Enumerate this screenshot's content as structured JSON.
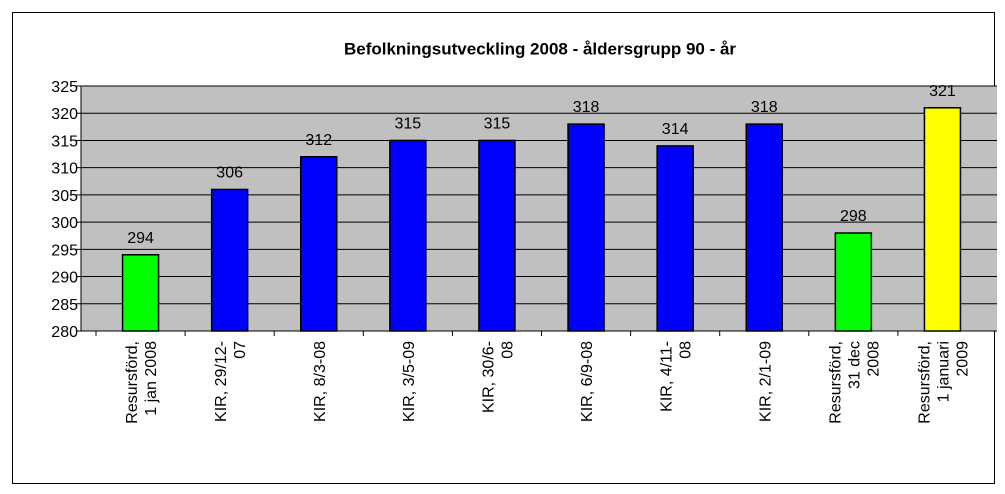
{
  "chart_data": {
    "type": "bar",
    "title": "Befolkningsutveckling 2008 - åldersgrupp 90 - år",
    "categories": [
      "Resursförd,\n1 jan 2008",
      "KIR, 29/12-\n07",
      "KIR, 8/3-08",
      "KIR, 3/5-09",
      "KIR, 30/6-\n08",
      "KIR, 6/9-08",
      "KIR, 4/11-\n08",
      "KIR, 2/1-09",
      "Resursförd,\n31 dec\n2008",
      "Resursförd,\n1 januari\n2009"
    ],
    "values": [
      294,
      306,
      312,
      315,
      315,
      318,
      314,
      318,
      298,
      321
    ],
    "colors": [
      "#00ff00",
      "#0000ff",
      "#0000ff",
      "#0000ff",
      "#0000ff",
      "#0000ff",
      "#0000ff",
      "#0000ff",
      "#00ff00",
      "#ffff00"
    ],
    "ylim": [
      280,
      325
    ],
    "yticks": [
      280,
      285,
      290,
      295,
      300,
      305,
      310,
      315,
      320,
      325
    ],
    "grid": true,
    "plot_background": "#c0c0c0"
  }
}
